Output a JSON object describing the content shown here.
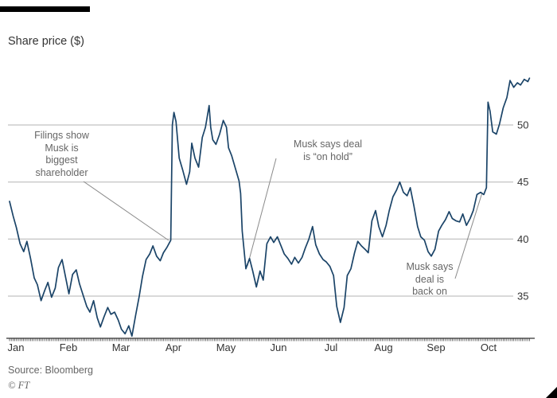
{
  "header": {
    "title": "Share price ($)"
  },
  "footer": {
    "source": "Source: Bloomberg",
    "credit": "© FT"
  },
  "colors": {
    "line": "#1b4468",
    "grid": "#b3b3b3",
    "axis": "#333333",
    "annotation_text": "#666666",
    "connector": "#8a8a8a",
    "top_bar": "#000000"
  },
  "chart_data": {
    "type": "line",
    "title": "Share price ($)",
    "ylabel": "Share price ($)",
    "source": "Source: Bloomberg",
    "grid": "horizontal",
    "legend": "none",
    "x_axis": {
      "tick_labels": [
        "Jan",
        "Feb",
        "Mar",
        "Apr",
        "May",
        "Jun",
        "Jul",
        "Aug",
        "Sep",
        "Oct"
      ],
      "unit": "month",
      "x_is_month_index": true
    },
    "y_axis": {
      "ticks": [
        35,
        40,
        45,
        50
      ],
      "side": "right"
    },
    "xlim": [
      0,
      9.93
    ],
    "ylim": [
      31.3,
      54.7
    ],
    "series": [
      {
        "name": "Share price ($)",
        "points": [
          [
            0.0,
            43.3
          ],
          [
            0.07,
            42.0
          ],
          [
            0.13,
            41.0
          ],
          [
            0.2,
            39.6
          ],
          [
            0.27,
            38.9
          ],
          [
            0.33,
            39.8
          ],
          [
            0.4,
            38.3
          ],
          [
            0.47,
            36.6
          ],
          [
            0.53,
            36.0
          ],
          [
            0.6,
            34.6
          ],
          [
            0.67,
            35.5
          ],
          [
            0.73,
            36.2
          ],
          [
            0.8,
            34.9
          ],
          [
            0.87,
            35.7
          ],
          [
            0.93,
            37.5
          ],
          [
            1.0,
            38.2
          ],
          [
            1.07,
            36.6
          ],
          [
            1.13,
            35.2
          ],
          [
            1.2,
            36.9
          ],
          [
            1.27,
            37.3
          ],
          [
            1.33,
            36.1
          ],
          [
            1.4,
            35.1
          ],
          [
            1.47,
            34.1
          ],
          [
            1.53,
            33.6
          ],
          [
            1.6,
            34.6
          ],
          [
            1.67,
            33.1
          ],
          [
            1.73,
            32.3
          ],
          [
            1.8,
            33.2
          ],
          [
            1.87,
            34.0
          ],
          [
            1.93,
            33.4
          ],
          [
            2.0,
            33.6
          ],
          [
            2.07,
            32.9
          ],
          [
            2.13,
            32.1
          ],
          [
            2.2,
            31.7
          ],
          [
            2.27,
            32.4
          ],
          [
            2.33,
            31.5
          ],
          [
            2.4,
            33.3
          ],
          [
            2.47,
            35.0
          ],
          [
            2.53,
            36.7
          ],
          [
            2.6,
            38.2
          ],
          [
            2.67,
            38.7
          ],
          [
            2.73,
            39.4
          ],
          [
            2.8,
            38.5
          ],
          [
            2.87,
            38.1
          ],
          [
            2.93,
            38.8
          ],
          [
            3.0,
            39.3
          ],
          [
            3.07,
            39.9
          ],
          [
            3.1,
            50.0
          ],
          [
            3.13,
            51.1
          ],
          [
            3.17,
            50.3
          ],
          [
            3.23,
            47.1
          ],
          [
            3.3,
            46.0
          ],
          [
            3.37,
            44.8
          ],
          [
            3.43,
            45.9
          ],
          [
            3.47,
            48.4
          ],
          [
            3.53,
            47.1
          ],
          [
            3.6,
            46.3
          ],
          [
            3.67,
            48.9
          ],
          [
            3.73,
            49.8
          ],
          [
            3.8,
            51.7
          ],
          [
            3.83,
            49.8
          ],
          [
            3.87,
            48.7
          ],
          [
            3.93,
            48.3
          ],
          [
            4.0,
            49.2
          ],
          [
            4.07,
            50.4
          ],
          [
            4.13,
            49.8
          ],
          [
            4.17,
            48.0
          ],
          [
            4.23,
            47.3
          ],
          [
            4.3,
            46.2
          ],
          [
            4.37,
            45.1
          ],
          [
            4.4,
            44.0
          ],
          [
            4.43,
            40.7
          ],
          [
            4.5,
            37.4
          ],
          [
            4.57,
            38.3
          ],
          [
            4.63,
            37.2
          ],
          [
            4.7,
            35.8
          ],
          [
            4.77,
            37.2
          ],
          [
            4.83,
            36.4
          ],
          [
            4.9,
            39.6
          ],
          [
            4.97,
            40.2
          ],
          [
            5.03,
            39.7
          ],
          [
            5.1,
            40.2
          ],
          [
            5.17,
            39.4
          ],
          [
            5.23,
            38.7
          ],
          [
            5.3,
            38.3
          ],
          [
            5.37,
            37.8
          ],
          [
            5.43,
            38.4
          ],
          [
            5.5,
            37.9
          ],
          [
            5.57,
            38.4
          ],
          [
            5.63,
            39.2
          ],
          [
            5.7,
            40.0
          ],
          [
            5.77,
            41.1
          ],
          [
            5.83,
            39.5
          ],
          [
            5.9,
            38.7
          ],
          [
            5.97,
            38.2
          ],
          [
            6.03,
            38.0
          ],
          [
            6.1,
            37.6
          ],
          [
            6.17,
            36.8
          ],
          [
            6.23,
            34.1
          ],
          [
            6.3,
            32.7
          ],
          [
            6.37,
            34.0
          ],
          [
            6.43,
            36.8
          ],
          [
            6.5,
            37.4
          ],
          [
            6.57,
            38.8
          ],
          [
            6.63,
            39.8
          ],
          [
            6.7,
            39.4
          ],
          [
            6.77,
            39.1
          ],
          [
            6.83,
            38.8
          ],
          [
            6.9,
            41.6
          ],
          [
            6.97,
            42.5
          ],
          [
            7.03,
            41.1
          ],
          [
            7.1,
            40.2
          ],
          [
            7.17,
            41.2
          ],
          [
            7.23,
            42.5
          ],
          [
            7.3,
            43.7
          ],
          [
            7.37,
            44.3
          ],
          [
            7.43,
            45.0
          ],
          [
            7.5,
            44.1
          ],
          [
            7.57,
            43.8
          ],
          [
            7.63,
            44.5
          ],
          [
            7.7,
            42.9
          ],
          [
            7.77,
            41.1
          ],
          [
            7.83,
            40.2
          ],
          [
            7.9,
            39.9
          ],
          [
            7.97,
            38.9
          ],
          [
            8.03,
            38.5
          ],
          [
            8.1,
            39.1
          ],
          [
            8.17,
            40.7
          ],
          [
            8.23,
            41.2
          ],
          [
            8.3,
            41.7
          ],
          [
            8.37,
            42.4
          ],
          [
            8.43,
            41.8
          ],
          [
            8.5,
            41.6
          ],
          [
            8.57,
            41.5
          ],
          [
            8.63,
            42.2
          ],
          [
            8.7,
            41.2
          ],
          [
            8.77,
            41.8
          ],
          [
            8.83,
            42.5
          ],
          [
            8.9,
            43.9
          ],
          [
            8.97,
            44.1
          ],
          [
            9.03,
            43.9
          ],
          [
            9.08,
            44.5
          ],
          [
            9.11,
            52.0
          ],
          [
            9.15,
            51.2
          ],
          [
            9.2,
            49.4
          ],
          [
            9.27,
            49.2
          ],
          [
            9.33,
            50.1
          ],
          [
            9.4,
            51.5
          ],
          [
            9.47,
            52.4
          ],
          [
            9.53,
            53.9
          ],
          [
            9.6,
            53.3
          ],
          [
            9.67,
            53.7
          ],
          [
            9.73,
            53.5
          ],
          [
            9.8,
            54.0
          ],
          [
            9.87,
            53.8
          ],
          [
            9.9,
            54.1
          ]
        ]
      }
    ],
    "annotations": [
      {
        "id": "filings",
        "text": "Filings show\nMusk is\nbiggest\nshareholder",
        "target": {
          "x": 3.07,
          "y": 39.9
        }
      },
      {
        "id": "on-hold",
        "text": "Musk says deal\nis “on hold”",
        "target": {
          "x": 4.5,
          "y": 37.4
        }
      },
      {
        "id": "back-on",
        "text": "Musk says\ndeal is\nback on",
        "target": {
          "x": 9.08,
          "y": 44.5
        }
      }
    ]
  }
}
